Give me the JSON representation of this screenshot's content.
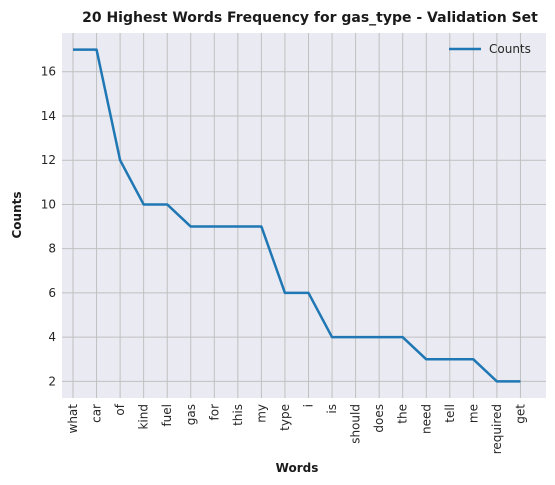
{
  "chart_data": {
    "type": "line",
    "title": "20 Highest Words Frequency for gas_type - Validation Set",
    "xlabel": "Words",
    "ylabel": "Counts",
    "categories": [
      "what",
      "car",
      "of",
      "kind",
      "fuel",
      "gas",
      "for",
      "this",
      "my",
      "type",
      "i",
      "is",
      "should",
      "does",
      "the",
      "need",
      "tell",
      "me",
      "required",
      "get"
    ],
    "series": [
      {
        "name": "Counts",
        "values": [
          17,
          17,
          12,
          10,
          10,
          9,
          9,
          9,
          9,
          6,
          6,
          4,
          4,
          4,
          4,
          3,
          3,
          3,
          2,
          2
        ]
      }
    ],
    "ylim": [
      1.25,
      17.75
    ],
    "yticks": [
      2,
      4,
      6,
      8,
      10,
      12,
      14,
      16
    ],
    "grid": true,
    "legend_position": "top-right",
    "colors": {
      "line": "#1f77b4",
      "plot_bg": "#eaeaf2",
      "grid": "#c0c0c0"
    }
  }
}
